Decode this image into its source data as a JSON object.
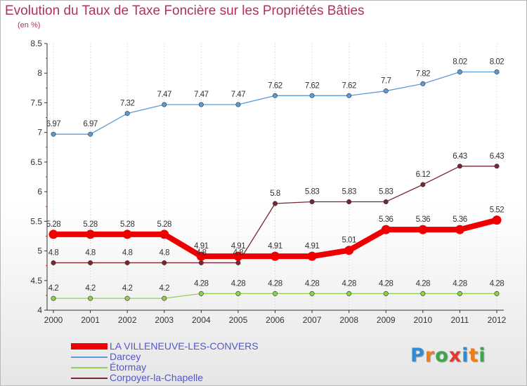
{
  "title": "Evolution du Taux de Taxe Foncière sur les Propriétés Bâties",
  "subtitle": "(en %)",
  "logo": {
    "text": "Proxiti",
    "letter_colors": [
      "#2e8bd8",
      "#ef7d17",
      "#3aa84a",
      "#e23b2e",
      "#2e8bd8",
      "#ef7d17",
      "#3aa84a"
    ]
  },
  "chart_data": {
    "type": "line",
    "title": "Evolution du Taux de Taxe Foncière sur les Propriétés Bâties",
    "subtitle": "(en %)",
    "x": [
      "2000",
      "2001",
      "2002",
      "2003",
      "2004",
      "2005",
      "2006",
      "2007",
      "2008",
      "2009",
      "2010",
      "2011",
      "2012"
    ],
    "ylim": [
      4,
      8.5
    ],
    "yticks": [
      "4",
      "4.5",
      "5",
      "5.5",
      "6",
      "6.5",
      "7",
      "7.5",
      "8",
      "8.5"
    ],
    "grid": "vertical-dotted",
    "legend": "bottom-left",
    "series": [
      {
        "name": "LA VILLENEUVE-LES-CONVERS",
        "color": "#ee0000",
        "thick": true,
        "values": [
          5.28,
          5.28,
          5.28,
          5.28,
          4.91,
          4.91,
          4.91,
          4.91,
          5.01,
          5.36,
          5.36,
          5.36,
          5.52
        ],
        "labels": [
          "5.28",
          "5.28",
          "5.28",
          "5.28",
          "4.91",
          "4.91",
          "4.91",
          "4.91",
          "5.01",
          "5.36",
          "5.36",
          "5.36",
          "5.52"
        ]
      },
      {
        "name": "Darcey",
        "color": "#5b9bd5",
        "thick": false,
        "values": [
          6.97,
          6.97,
          7.32,
          7.47,
          7.47,
          7.47,
          7.62,
          7.62,
          7.62,
          7.7,
          7.82,
          8.02,
          8.02
        ],
        "labels": [
          "6.97",
          "6.97",
          "7.32",
          "7.47",
          "7.47",
          "7.47",
          "7.62",
          "7.62",
          "7.62",
          "7.7",
          "7.82",
          "8.02",
          "8.02"
        ]
      },
      {
        "name": "Étormay",
        "color": "#8fd14f",
        "thick": false,
        "values": [
          4.2,
          4.2,
          4.2,
          4.2,
          4.28,
          4.28,
          4.28,
          4.28,
          4.28,
          4.28,
          4.28,
          4.28,
          4.28
        ],
        "labels": [
          "4.2",
          "4.2",
          "4.2",
          "4.2",
          "4.28",
          "4.28",
          "4.28",
          "4.28",
          "4.28",
          "4.28",
          "4.28",
          "4.28",
          "4.28"
        ]
      },
      {
        "name": "Corpoyer-la-Chapelle",
        "color": "#7a2530",
        "thick": false,
        "values": [
          4.8,
          4.8,
          4.8,
          4.8,
          4.8,
          4.8,
          5.8,
          5.83,
          5.83,
          5.83,
          6.12,
          6.43,
          6.43
        ],
        "labels": [
          "4.8",
          "4.8",
          "4.8",
          "4.8",
          "4.8",
          "4.8",
          "5.8",
          "5.83",
          "5.83",
          "5.83",
          "6.12",
          "6.43",
          "6.43"
        ]
      }
    ]
  }
}
